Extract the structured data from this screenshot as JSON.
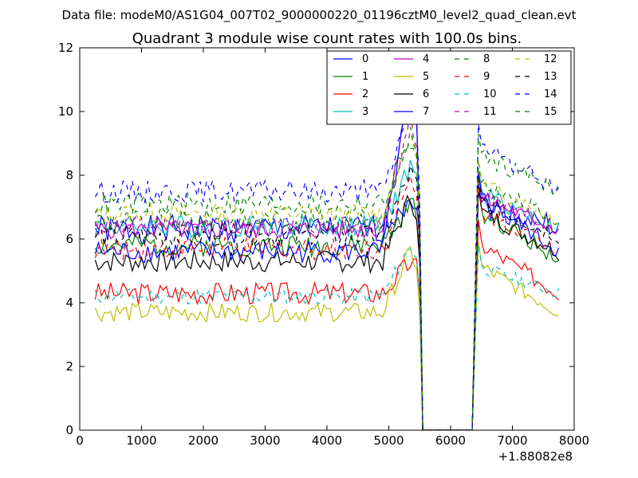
{
  "figure": {
    "suptitle": "Data file: modeM0/AS1G04_007T02_9000000220_01196cztM0_level2_quad_clean.evt"
  },
  "chart_data": {
    "type": "line",
    "title": "Quadrant 3 module wise count rates with 100.0s bins.",
    "xlabel": "",
    "ylabel": "",
    "xlim": [
      0,
      8000
    ],
    "ylim": [
      0,
      12
    ],
    "x_offset_label": "+1.88082e8",
    "xticks": [
      0,
      1000,
      2000,
      3000,
      4000,
      5000,
      6000,
      7000,
      8000
    ],
    "xtick_labels": [
      "0",
      "1000",
      "2000",
      "3000",
      "4000",
      "5000",
      "6000",
      "7000",
      "8000"
    ],
    "yticks": [
      0,
      2,
      4,
      6,
      8,
      10,
      12
    ],
    "ytick_labels": [
      "0",
      "2",
      "4",
      "6",
      "8",
      "10",
      "12"
    ],
    "grid": false,
    "legend_position": "top-right",
    "segments": [
      {
        "x_start": 250,
        "x_end": 5550,
        "step": 50
      },
      {
        "x_start": 6350,
        "x_end": 7750,
        "step": 50
      }
    ],
    "gap": {
      "x_start": 5550,
      "x_end": 6350,
      "value": 0
    },
    "series": [
      {
        "name": "0",
        "color": "#0000ff",
        "dash": "solid",
        "base": 6.3,
        "bump": 1.1,
        "post": 7.1,
        "post_end": 6.4,
        "noise": 0.45,
        "seed": 1
      },
      {
        "name": "1",
        "color": "#008000",
        "dash": "solid",
        "base": 5.8,
        "bump": 1.3,
        "post": 7.0,
        "post_end": 5.4,
        "noise": 0.35,
        "seed": 2
      },
      {
        "name": "2",
        "color": "#ff0000",
        "dash": "solid",
        "base": 4.3,
        "bump": 1.0,
        "post": 6.0,
        "post_end": 4.3,
        "noise": 0.35,
        "seed": 3
      },
      {
        "name": "3",
        "color": "#00bfbf",
        "dash": "solid",
        "base": 6.4,
        "bump": 1.9,
        "post": 7.6,
        "post_end": 6.3,
        "noise": 0.35,
        "seed": 4
      },
      {
        "name": "4",
        "color": "#bf00bf",
        "dash": "solid",
        "base": 6.3,
        "bump": 4.5,
        "post": 7.4,
        "post_end": 6.3,
        "noise": 0.3,
        "seed": 5
      },
      {
        "name": "5",
        "color": "#bfbf00",
        "dash": "solid",
        "base": 3.7,
        "bump": 1.9,
        "post": 5.3,
        "post_end": 3.7,
        "noise": 0.3,
        "seed": 6
      },
      {
        "name": "6",
        "color": "#000000",
        "dash": "solid",
        "base": 5.3,
        "bump": 2.0,
        "post": 7.0,
        "post_end": 5.6,
        "noise": 0.35,
        "seed": 7
      },
      {
        "name": "7",
        "color": "#0000ff",
        "dash": "solid",
        "base": 5.6,
        "bump": 5.2,
        "post": 7.5,
        "post_end": 5.6,
        "noise": 0.35,
        "seed": 8
      },
      {
        "name": "8",
        "color": "#008000",
        "dash": "dashed",
        "base": 6.6,
        "bump": 2.4,
        "post": 7.8,
        "post_end": 6.6,
        "noise": 0.35,
        "seed": 9
      },
      {
        "name": "9",
        "color": "#ff0000",
        "dash": "dashed",
        "base": 5.7,
        "bump": 2.1,
        "post": 7.0,
        "post_end": 5.7,
        "noise": 0.35,
        "seed": 10
      },
      {
        "name": "10",
        "color": "#00bfbf",
        "dash": "dashed",
        "base": 4.2,
        "bump": 1.6,
        "post": 5.2,
        "post_end": 4.3,
        "noise": 0.25,
        "seed": 11
      },
      {
        "name": "11",
        "color": "#bf00bf",
        "dash": "dashed",
        "base": 6.4,
        "bump": 3.4,
        "post": 7.5,
        "post_end": 6.3,
        "noise": 0.3,
        "seed": 12
      },
      {
        "name": "12",
        "color": "#bfbf00",
        "dash": "dashed",
        "base": 6.8,
        "bump": 2.4,
        "post": 7.9,
        "post_end": 6.6,
        "noise": 0.3,
        "seed": 13
      },
      {
        "name": "13",
        "color": "#000000",
        "dash": "dashed",
        "base": 6.1,
        "bump": 2.0,
        "post": 7.3,
        "post_end": 6.1,
        "noise": 0.35,
        "seed": 14
      },
      {
        "name": "14",
        "color": "#0000ff",
        "dash": "dashed",
        "base": 7.5,
        "bump": 2.6,
        "post": 9.0,
        "post_end": 7.6,
        "noise": 0.35,
        "seed": 15
      },
      {
        "name": "15",
        "color": "#008000",
        "dash": "dashed",
        "base": 7.1,
        "bump": 2.2,
        "post": 8.7,
        "post_end": 7.6,
        "noise": 0.35,
        "seed": 16
      }
    ]
  }
}
